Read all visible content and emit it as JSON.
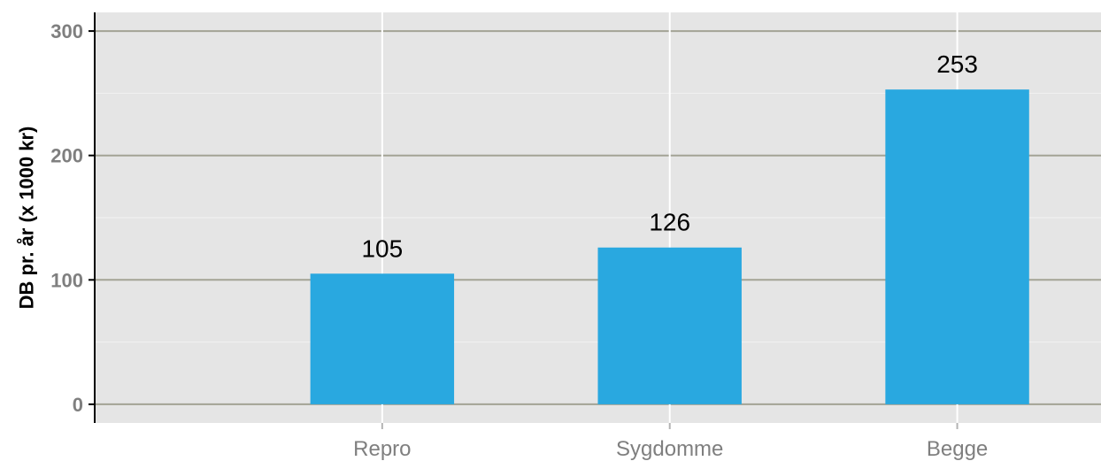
{
  "chart_data": {
    "type": "bar",
    "categories": [
      "Repro",
      "Sygdomme",
      "Begge"
    ],
    "values": [
      105,
      126,
      253
    ],
    "data_labels": [
      "105",
      "126",
      "253"
    ],
    "xlabel": "",
    "ylabel": "DB pr. år (x 1000 kr)",
    "ylim": [
      -15,
      315
    ],
    "yticks": [
      0,
      100,
      200,
      300
    ],
    "ytick_labels": [
      "0",
      "100",
      "200",
      "300"
    ],
    "grid": true,
    "legend": "none",
    "colors": {
      "bar": "#29a8e0",
      "panel_background": "#e5e5e5",
      "major_grid": "#a3a395",
      "minor_grid": "#f2f2f2",
      "vertical_grid": "#ffffff",
      "axis_line": "#000000",
      "tick_text": "#7f7f7f"
    }
  }
}
